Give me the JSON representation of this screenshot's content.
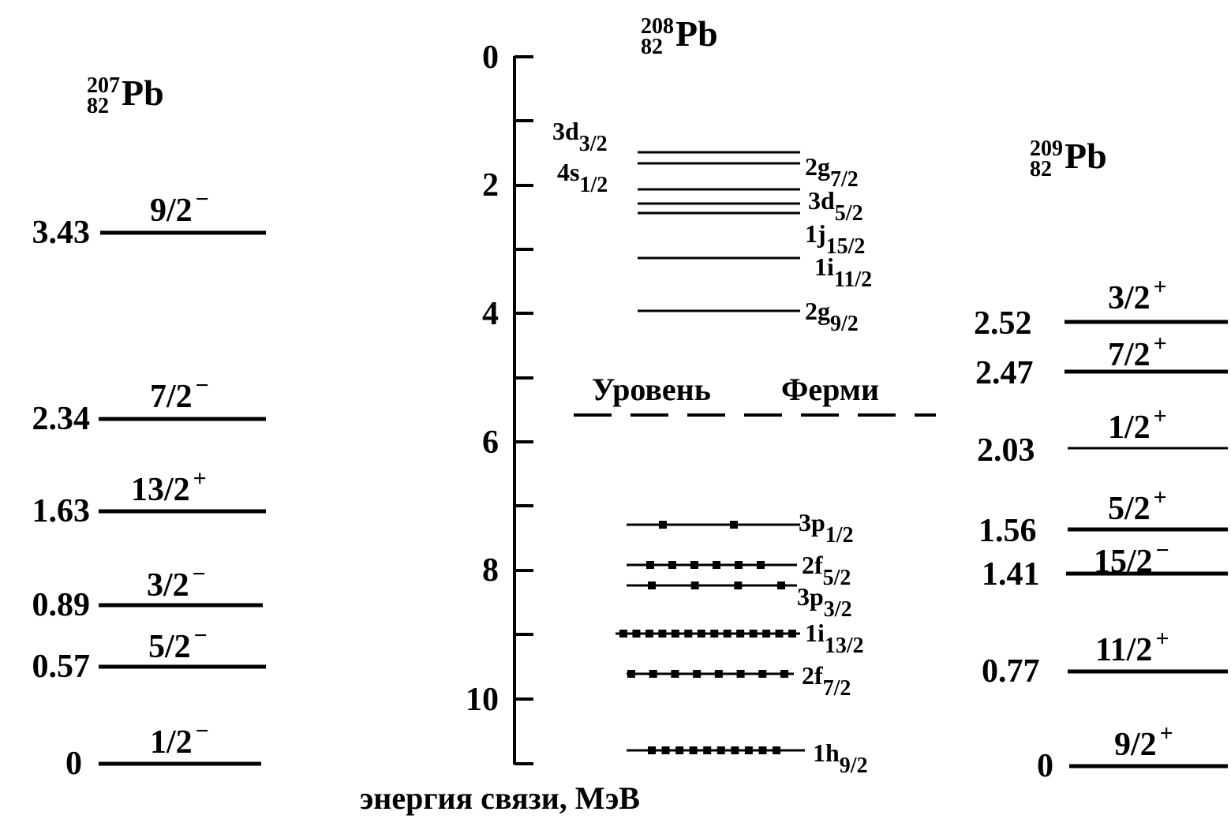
{
  "left_nucleus": {
    "mass": "207",
    "charge": "82",
    "symbol": "Pb"
  },
  "center_nucleus": {
    "mass": "208",
    "charge": "82",
    "symbol": "Pb"
  },
  "right_nucleus": {
    "mass": "209",
    "charge": "82",
    "symbol": "Pb"
  },
  "left_levels": [
    {
      "energy": "3.43",
      "spin": "9/2",
      "parity": "−"
    },
    {
      "energy": "2.34",
      "spin": "7/2",
      "parity": "−"
    },
    {
      "energy": "1.63",
      "spin": "13/2",
      "parity": "+"
    },
    {
      "energy": "0.89",
      "spin": "3/2",
      "parity": "−"
    },
    {
      "energy": "0.57",
      "spin": "5/2",
      "parity": "−"
    },
    {
      "energy": "0",
      "spin": "1/2",
      "parity": "−"
    }
  ],
  "right_levels": [
    {
      "energy": "2.52",
      "spin": "3/2",
      "parity": "+"
    },
    {
      "energy": "2.47",
      "spin": "7/2",
      "parity": "+"
    },
    {
      "energy": "2.03",
      "spin": "1/2",
      "parity": "+"
    },
    {
      "energy": "1.56",
      "spin": "5/2",
      "parity": "+"
    },
    {
      "energy": "1.41",
      "spin": "15/2",
      "parity": "−"
    },
    {
      "energy": "0.77",
      "spin": "11/2",
      "parity": "+"
    },
    {
      "energy": "0",
      "spin": "9/2",
      "parity": "+"
    }
  ],
  "axis": {
    "label": "энергия связи, МэВ",
    "ticks": [
      "0",
      "2",
      "4",
      "6",
      "8",
      "10"
    ]
  },
  "fermi_label": {
    "word1": "Уровень",
    "word2": "Ферми"
  },
  "unoccupied_orbitals": [
    {
      "n_l": "3d",
      "j": "3/2"
    },
    {
      "n_l": "4s",
      "j": "1/2"
    },
    {
      "n_l": "2g",
      "j": "7/2"
    },
    {
      "n_l": "3d",
      "j": "5/2"
    },
    {
      "n_l": "1j",
      "j": "15/2"
    },
    {
      "n_l": "1i",
      "j": "11/2"
    },
    {
      "n_l": "2g",
      "j": "9/2"
    }
  ],
  "occupied_orbitals": [
    {
      "n_l": "3p",
      "j": "1/2"
    },
    {
      "n_l": "2f",
      "j": "5/2"
    },
    {
      "n_l": "3p",
      "j": "3/2"
    },
    {
      "n_l": "1i",
      "j": "13/2"
    },
    {
      "n_l": "2f",
      "j": "7/2"
    },
    {
      "n_l": "1h",
      "j": "9/2"
    }
  ]
}
